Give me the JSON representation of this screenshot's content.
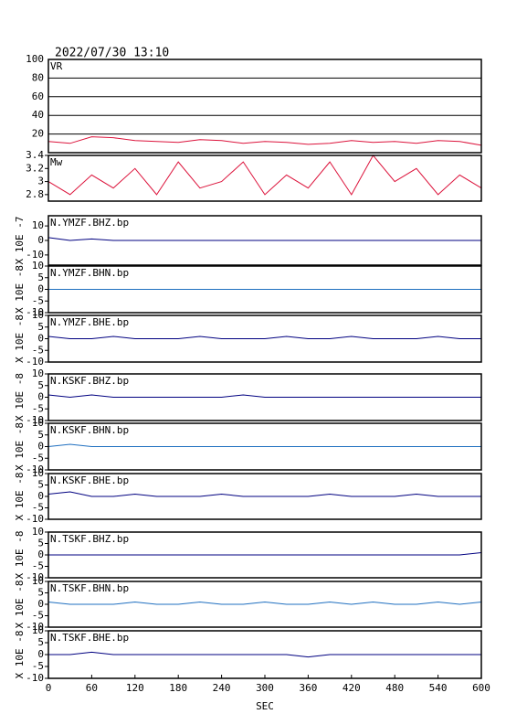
{
  "chart_data": [
    {
      "type": "line",
      "title": "2022/07/30 13:10",
      "label": "VR",
      "grid": true,
      "x": [
        0,
        30,
        60,
        90,
        120,
        150,
        180,
        210,
        240,
        270,
        300,
        330,
        360,
        390,
        420,
        450,
        480,
        510,
        540,
        570,
        600
      ],
      "xlim": [
        0,
        600
      ],
      "ylim": [
        0,
        100
      ],
      "yticks": [
        20,
        40,
        60,
        80,
        100
      ],
      "series": [
        {
          "color": "#dc143c",
          "values": [
            12,
            10,
            17,
            16,
            13,
            12,
            11,
            14,
            13,
            10,
            12,
            11,
            9,
            10,
            13,
            11,
            12,
            10,
            13,
            12,
            8
          ]
        }
      ]
    },
    {
      "type": "line",
      "label": "Mw",
      "x": [
        0,
        30,
        60,
        90,
        120,
        150,
        180,
        210,
        240,
        270,
        300,
        330,
        360,
        390,
        420,
        450,
        480,
        510,
        540,
        570,
        600
      ],
      "xlim": [
        0,
        600
      ],
      "ylim": [
        2.7,
        3.4
      ],
      "yticks": [
        2.8,
        3.0,
        3.2,
        3.4
      ],
      "series": [
        {
          "color": "#dc143c",
          "values": [
            3.0,
            2.8,
            3.1,
            2.9,
            3.2,
            2.8,
            3.3,
            2.9,
            3.0,
            3.3,
            2.8,
            3.1,
            2.9,
            3.3,
            2.8,
            3.4,
            3.0,
            3.2,
            2.8,
            3.1,
            2.9
          ]
        }
      ]
    },
    {
      "type": "line",
      "label": "N.YMZF.BHZ.bp",
      "ylabel": "X 10E -7",
      "x": [
        0,
        30,
        60,
        90,
        120,
        150,
        180,
        210,
        240,
        270,
        300,
        330,
        360,
        390,
        420,
        450,
        480,
        510,
        540,
        570,
        600
      ],
      "xlim": [
        0,
        600
      ],
      "ylim": [
        -17,
        17
      ],
      "yticks": [
        -10,
        0,
        10
      ],
      "series": [
        {
          "color": "#000080",
          "values": [
            2,
            0,
            1,
            0,
            0,
            0,
            0,
            0,
            0,
            0,
            0,
            0,
            0,
            0,
            0,
            0,
            0,
            0,
            0,
            0,
            0
          ]
        }
      ]
    },
    {
      "type": "line",
      "label": "N.YMZF.BHN.bp",
      "ylabel": "X 10E -8",
      "x": [
        0,
        30,
        60,
        90,
        120,
        150,
        180,
        210,
        240,
        270,
        300,
        330,
        360,
        390,
        420,
        450,
        480,
        510,
        540,
        570,
        600
      ],
      "xlim": [
        0,
        600
      ],
      "ylim": [
        -10,
        10
      ],
      "yticks": [
        -10,
        -5,
        0,
        5,
        10
      ],
      "series": [
        {
          "color": "#1f6fc0",
          "values": [
            0,
            0,
            0,
            0,
            0,
            0,
            0,
            0,
            0,
            0,
            0,
            0,
            0,
            0,
            0,
            0,
            0,
            0,
            0,
            0,
            0
          ]
        }
      ]
    },
    {
      "type": "line",
      "label": "N.YMZF.BHE.bp",
      "ylabel": "X 10E -8",
      "x": [
        0,
        30,
        60,
        90,
        120,
        150,
        180,
        210,
        240,
        270,
        300,
        330,
        360,
        390,
        420,
        450,
        480,
        510,
        540,
        570,
        600
      ],
      "xlim": [
        0,
        600
      ],
      "ylim": [
        -10,
        10
      ],
      "yticks": [
        -10,
        -5,
        0,
        5,
        10
      ],
      "series": [
        {
          "color": "#000080",
          "values": [
            1,
            0,
            0,
            1,
            0,
            0,
            0,
            1,
            0,
            0,
            0,
            1,
            0,
            0,
            1,
            0,
            0,
            0,
            1,
            0,
            0
          ]
        }
      ]
    },
    {
      "type": "line",
      "label": "N.KSKF.BHZ.bp",
      "ylabel": "X 10E -8",
      "x": [
        0,
        30,
        60,
        90,
        120,
        150,
        180,
        210,
        240,
        270,
        300,
        330,
        360,
        390,
        420,
        450,
        480,
        510,
        540,
        570,
        600
      ],
      "xlim": [
        0,
        600
      ],
      "ylim": [
        -10,
        10
      ],
      "yticks": [
        -10,
        -5,
        0,
        5,
        10
      ],
      "series": [
        {
          "color": "#000080",
          "values": [
            1,
            0,
            1,
            0,
            0,
            0,
            0,
            0,
            0,
            1,
            0,
            0,
            0,
            0,
            0,
            0,
            0,
            0,
            0,
            0,
            0
          ]
        }
      ]
    },
    {
      "type": "line",
      "label": "N.KSKF.BHN.bp",
      "ylabel": "X 10E -8",
      "x": [
        0,
        30,
        60,
        90,
        120,
        150,
        180,
        210,
        240,
        270,
        300,
        330,
        360,
        390,
        420,
        450,
        480,
        510,
        540,
        570,
        600
      ],
      "xlim": [
        0,
        600
      ],
      "ylim": [
        -10,
        10
      ],
      "yticks": [
        -10,
        -5,
        0,
        5,
        10
      ],
      "series": [
        {
          "color": "#1f6fc0",
          "values": [
            0,
            1,
            0,
            0,
            0,
            0,
            0,
            0,
            0,
            0,
            0,
            0,
            0,
            0,
            0,
            0,
            0,
            0,
            0,
            0,
            0
          ]
        }
      ]
    },
    {
      "type": "line",
      "label": "N.KSKF.BHE.bp",
      "ylabel": "X 10E -8",
      "x": [
        0,
        30,
        60,
        90,
        120,
        150,
        180,
        210,
        240,
        270,
        300,
        330,
        360,
        390,
        420,
        450,
        480,
        510,
        540,
        570,
        600
      ],
      "xlim": [
        0,
        600
      ],
      "ylim": [
        -10,
        10
      ],
      "yticks": [
        -10,
        -5,
        0,
        5,
        10
      ],
      "series": [
        {
          "color": "#000080",
          "values": [
            1,
            2,
            0,
            0,
            1,
            0,
            0,
            0,
            1,
            0,
            0,
            0,
            0,
            1,
            0,
            0,
            0,
            1,
            0,
            0,
            0
          ]
        }
      ]
    },
    {
      "type": "line",
      "label": "N.TSKF.BHZ.bp",
      "ylabel": "X 10E -8",
      "x": [
        0,
        30,
        60,
        90,
        120,
        150,
        180,
        210,
        240,
        270,
        300,
        330,
        360,
        390,
        420,
        450,
        480,
        510,
        540,
        570,
        600
      ],
      "xlim": [
        0,
        600
      ],
      "ylim": [
        -10,
        10
      ],
      "yticks": [
        -10,
        -5,
        0,
        5,
        10
      ],
      "series": [
        {
          "color": "#000080",
          "values": [
            0,
            0,
            0,
            0,
            0,
            0,
            0,
            0,
            0,
            0,
            0,
            0,
            0,
            0,
            0,
            0,
            0,
            0,
            0,
            0,
            1
          ]
        }
      ]
    },
    {
      "type": "line",
      "label": "N.TSKF.BHN.bp",
      "ylabel": "X 10E -8",
      "x": [
        0,
        30,
        60,
        90,
        120,
        150,
        180,
        210,
        240,
        270,
        300,
        330,
        360,
        390,
        420,
        450,
        480,
        510,
        540,
        570,
        600
      ],
      "xlim": [
        0,
        600
      ],
      "ylim": [
        -10,
        10
      ],
      "yticks": [
        -10,
        -5,
        0,
        5,
        10
      ],
      "series": [
        {
          "color": "#1f6fc0",
          "values": [
            1,
            0,
            0,
            0,
            1,
            0,
            0,
            1,
            0,
            0,
            1,
            0,
            0,
            1,
            0,
            1,
            0,
            0,
            1,
            0,
            1
          ]
        }
      ]
    },
    {
      "type": "line",
      "label": "N.TSKF.BHE.bp",
      "ylabel": "X 10E -8",
      "xlabel": "SEC",
      "x": [
        0,
        30,
        60,
        90,
        120,
        150,
        180,
        210,
        240,
        270,
        300,
        330,
        360,
        390,
        420,
        450,
        480,
        510,
        540,
        570,
        600
      ],
      "xlim": [
        0,
        600
      ],
      "ylim": [
        -10,
        10
      ],
      "yticks": [
        -10,
        -5,
        0,
        5,
        10
      ],
      "xticks": [
        0,
        60,
        120,
        180,
        240,
        300,
        360,
        420,
        480,
        540,
        600
      ],
      "series": [
        {
          "color": "#000080",
          "values": [
            0,
            0,
            1,
            0,
            0,
            0,
            0,
            0,
            0,
            0,
            0,
            0,
            -1,
            0,
            0,
            0,
            0,
            0,
            0,
            0,
            0
          ]
        }
      ]
    }
  ]
}
